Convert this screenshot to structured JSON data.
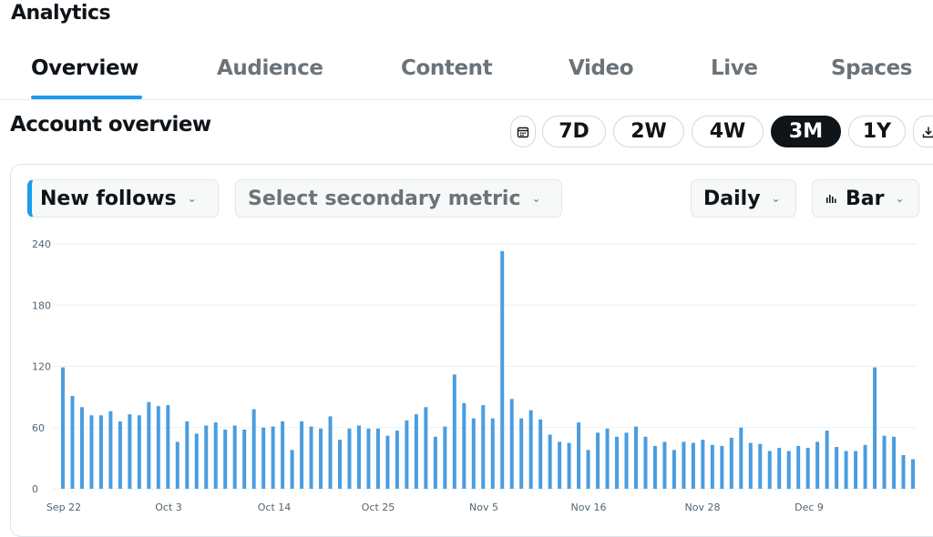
{
  "app": {
    "title": "Analytics"
  },
  "tabs": [
    {
      "label": "Overview",
      "active": true
    },
    {
      "label": "Audience",
      "active": false
    },
    {
      "label": "Content",
      "active": false
    },
    {
      "label": "Video",
      "active": false
    },
    {
      "label": "Live",
      "active": false
    },
    {
      "label": "Spaces",
      "active": false
    }
  ],
  "section": {
    "title": "Account overview"
  },
  "range": {
    "calendar_icon": "calendar-icon",
    "options": [
      {
        "label": "7D",
        "active": false
      },
      {
        "label": "2W",
        "active": false
      },
      {
        "label": "4W",
        "active": false
      },
      {
        "label": "3M",
        "active": true
      },
      {
        "label": "1Y",
        "active": false
      }
    ],
    "download_icon": "download-icon"
  },
  "controls": {
    "primary_metric": "New follows",
    "secondary_metric_placeholder": "Select secondary metric",
    "granularity": "Daily",
    "chart_type": "Bar",
    "chart_type_icon": "bar-chart-icon"
  },
  "colors": {
    "accent": "#1d9bf0",
    "bar": "#4a9de0",
    "text": "#0f1419",
    "muted": "#6b7379"
  },
  "chart_data": {
    "type": "bar",
    "ylim": [
      0,
      240
    ],
    "yticks": [
      0,
      60,
      120,
      180,
      240
    ],
    "xtick_labels": [
      "Sep 22",
      "Oct 3",
      "Oct 14",
      "Oct 25",
      "Nov 5",
      "Nov 16",
      "Nov 28",
      "Dec 9"
    ],
    "grid": true,
    "values": [
      119,
      91,
      80,
      72,
      72,
      76,
      66,
      73,
      72,
      85,
      81,
      82,
      46,
      66,
      54,
      62,
      65,
      58,
      62,
      58,
      78,
      60,
      61,
      66,
      38,
      66,
      61,
      59,
      71,
      48,
      59,
      62,
      59,
      59,
      52,
      57,
      67,
      73,
      80,
      51,
      61,
      112,
      84,
      69,
      82,
      69,
      233,
      88,
      69,
      77,
      68,
      53,
      46,
      45,
      65,
      38,
      55,
      59,
      51,
      55,
      61,
      51,
      42,
      46,
      38,
      46,
      45,
      48,
      43,
      42,
      50,
      60,
      45,
      44,
      37,
      40,
      37,
      42,
      40,
      46,
      57,
      41,
      37,
      37,
      43,
      119,
      52,
      51,
      33,
      29
    ]
  }
}
